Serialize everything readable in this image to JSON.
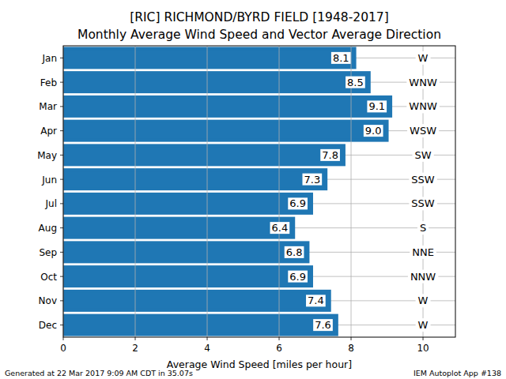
{
  "chart_data": {
    "type": "bar",
    "orientation": "horizontal",
    "title": "[RIC] RICHMOND/BYRD FIELD [1948-2017]",
    "subtitle": "Monthly Average Wind Speed and Vector Average Direction",
    "x_label": "Average Wind Speed [miles per hour]",
    "categories": [
      "Jan",
      "Feb",
      "Mar",
      "Apr",
      "May",
      "Jun",
      "Jul",
      "Aug",
      "Sep",
      "Oct",
      "Nov",
      "Dec"
    ],
    "values": [
      8.1,
      8.5,
      9.1,
      9.0,
      7.8,
      7.3,
      6.9,
      6.4,
      6.8,
      6.9,
      7.4,
      7.6
    ],
    "value_labels": [
      "8.1",
      "8.5",
      "9.1",
      "9.0",
      "7.8",
      "7.3",
      "6.9",
      "6.4",
      "6.8",
      "6.9",
      "7.4",
      "7.6"
    ],
    "annotations": [
      "W",
      "WNW",
      "WNW",
      "WSW",
      "SW",
      "SSW",
      "SSW",
      "S",
      "NNE",
      "NNW",
      "W",
      "W"
    ],
    "footnotes": [
      "Generated at 22 Mar 2017 9:09 AM CDT in 35.07s",
      "IEM Autoplot App #138"
    ],
    "color": "#1f77b4",
    "xlim": [
      0,
      10.9
    ],
    "xticks": [
      0,
      2,
      4,
      6,
      8,
      10
    ],
    "grid": true,
    "data_labels": true
  }
}
